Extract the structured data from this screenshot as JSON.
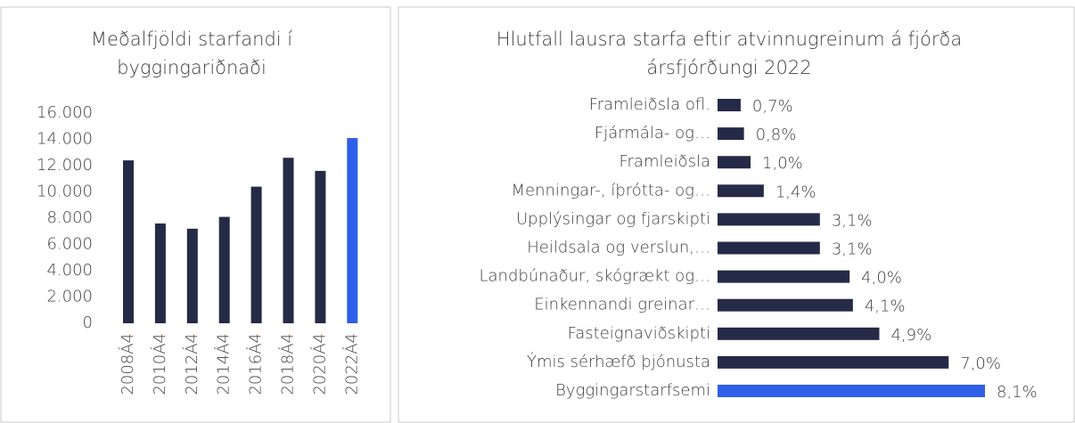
{
  "chart_data": [
    {
      "type": "bar",
      "title": "Meðalfjöldi starfandi í byggingariðnaði",
      "categories": [
        "2008Á4",
        "2010Á4",
        "2012Á4",
        "2014Á4",
        "2016Á4",
        "2018Á4",
        "2020Á4",
        "2022Á4"
      ],
      "values": [
        12400,
        7600,
        7200,
        8100,
        10400,
        12600,
        11600,
        14100
      ],
      "colors": [
        "#252a46",
        "#252a46",
        "#252a46",
        "#252a46",
        "#252a46",
        "#252a46",
        "#252a46",
        "#2f5ee8"
      ],
      "ylim": [
        0,
        16000
      ],
      "yticks": [
        0,
        {
          "value": 2000,
          "label": "2.000"
        },
        {
          "value": 4000,
          "label": "4.000"
        },
        {
          "value": 6000,
          "label": "6.000"
        },
        {
          "value": 8000,
          "label": "8.000"
        },
        {
          "value": 10000,
          "label": "10.000"
        },
        {
          "value": 12000,
          "label": "12.000"
        },
        {
          "value": 14000,
          "label": "14.000"
        },
        {
          "value": 16000,
          "label": "16.000"
        }
      ],
      "grid": false
    },
    {
      "type": "hbar",
      "title": "Hlutfall lausra starfa eftir atvinnugreinum á fjórða ársfjórðungi 2022",
      "categories": [
        "Framleiðsla ofl.",
        "Fjármála- og…",
        "Framleiðsla",
        "Menningar-, íþrótta- og…",
        "Upplýsingar og fjarskipti",
        "Heildsala og verslun,…",
        "Landbúnaður, skógrækt og…",
        "Einkennandi greinar…",
        "Fasteignaviðskipti",
        "Ýmis sérhæfð þjónusta",
        "Byggingarstarfsemi"
      ],
      "values": [
        0.7,
        0.8,
        1.0,
        1.4,
        3.1,
        3.1,
        4.0,
        4.1,
        4.9,
        7.0,
        8.1
      ],
      "value_labels": [
        "0,7%",
        "0,8%",
        "1,0%",
        "1,4%",
        "3,1%",
        "3,1%",
        "4,0%",
        "4,1%",
        "4,9%",
        "7,0%",
        "8,1%"
      ],
      "colors": [
        "#252a46",
        "#252a46",
        "#252a46",
        "#252a46",
        "#252a46",
        "#252a46",
        "#252a46",
        "#252a46",
        "#252a46",
        "#252a46",
        "#2f5ee8"
      ]
    }
  ]
}
